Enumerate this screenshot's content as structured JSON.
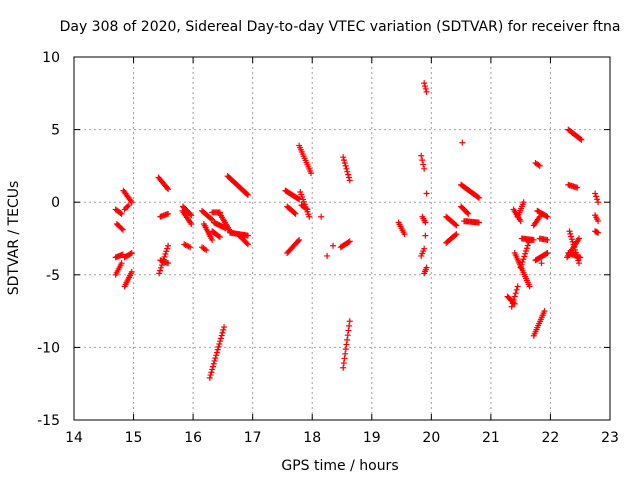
{
  "chart_data": {
    "type": "scatter",
    "title": "Day 308 of 2020, Sidereal Day-to-day VTEC variation (SDTVAR) for receiver ftna",
    "xlabel": "GPS time / hours",
    "ylabel": "SDTVAR / TECUs",
    "xlim": [
      14,
      23
    ],
    "ylim": [
      -15,
      10
    ],
    "xticks": [
      "14",
      "15",
      "16",
      "17",
      "18",
      "19",
      "20",
      "21",
      "22",
      "23"
    ],
    "yticks": [
      "10",
      "5",
      "0",
      "-5",
      "-10",
      "-15"
    ],
    "grid": true,
    "marker": "plus",
    "color": "#ff0000",
    "series": [
      {
        "name": "SDTVAR",
        "segments": [
          {
            "x0": 14.7,
            "y0": -0.5,
            "x1": 14.8,
            "y1": -0.8
          },
          {
            "x0": 14.72,
            "y0": -1.5,
            "x1": 14.82,
            "y1": -1.9
          },
          {
            "x0": 14.7,
            "y0": -3.8,
            "x1": 14.82,
            "y1": -3.6
          },
          {
            "x0": 14.7,
            "y0": -5.0,
            "x1": 14.8,
            "y1": -4.2
          },
          {
            "x0": 14.85,
            "y0": -5.8,
            "x1": 14.97,
            "y1": -4.8
          },
          {
            "x0": 14.85,
            "y0": -3.8,
            "x1": 14.97,
            "y1": -3.5
          },
          {
            "x0": 14.83,
            "y0": 0.8,
            "x1": 14.97,
            "y1": 0.0
          },
          {
            "x0": 14.85,
            "y0": -0.5,
            "x1": 14.92,
            "y1": -0.2
          },
          {
            "x0": 15.42,
            "y0": 1.7,
            "x1": 15.58,
            "y1": 0.9
          },
          {
            "x0": 15.45,
            "y0": -1.0,
            "x1": 15.58,
            "y1": -0.8
          },
          {
            "x0": 15.43,
            "y0": -4.9,
            "x1": 15.58,
            "y1": -3.0
          },
          {
            "x0": 15.45,
            "y0": -4.0,
            "x1": 15.58,
            "y1": -4.2
          },
          {
            "x0": 15.82,
            "y0": -0.6,
            "x1": 15.97,
            "y1": -1.5
          },
          {
            "x0": 15.83,
            "y0": -0.3,
            "x1": 15.97,
            "y1": -0.9
          },
          {
            "x0": 15.85,
            "y0": -2.9,
            "x1": 15.95,
            "y1": -3.1
          },
          {
            "x0": 16.15,
            "y0": -0.6,
            "x1": 16.32,
            "y1": -1.2
          },
          {
            "x0": 16.18,
            "y0": -1.5,
            "x1": 16.32,
            "y1": -2.6
          },
          {
            "x0": 16.15,
            "y0": -3.1,
            "x1": 16.22,
            "y1": -3.3
          },
          {
            "x0": 16.32,
            "y0": -0.7,
            "x1": 16.45,
            "y1": -0.7
          },
          {
            "x0": 16.35,
            "y0": -1.4,
            "x1": 16.55,
            "y1": -1.8
          },
          {
            "x0": 16.32,
            "y0": -2.0,
            "x1": 16.45,
            "y1": -2.4
          },
          {
            "x0": 16.28,
            "y0": -12.1,
            "x1": 16.52,
            "y1": -8.6
          },
          {
            "x0": 16.45,
            "y0": -0.8,
            "x1": 16.62,
            "y1": -2.0
          },
          {
            "x0": 16.58,
            "y0": 1.8,
            "x1": 16.92,
            "y1": 0.5
          },
          {
            "x0": 16.62,
            "y0": -2.1,
            "x1": 16.92,
            "y1": -2.3
          },
          {
            "x0": 16.75,
            "y0": -2.2,
            "x1": 16.92,
            "y1": -2.9
          },
          {
            "x0": 17.55,
            "y0": 0.8,
            "x1": 17.78,
            "y1": 0.2
          },
          {
            "x0": 17.58,
            "y0": -0.3,
            "x1": 17.72,
            "y1": -0.8
          },
          {
            "x0": 17.58,
            "y0": -3.5,
            "x1": 17.78,
            "y1": -2.6
          },
          {
            "x0": 17.78,
            "y0": 3.9,
            "x1": 17.98,
            "y1": 2.0
          },
          {
            "x0": 17.8,
            "y0": 0.7,
            "x1": 17.95,
            "y1": -1.0
          },
          {
            "x0": 17.82,
            "y0": -0.2,
            "x1": 17.92,
            "y1": -0.5
          },
          {
            "x0": 18.48,
            "y0": -3.1,
            "x1": 18.63,
            "y1": -2.7
          },
          {
            "x0": 18.52,
            "y0": 3.1,
            "x1": 18.63,
            "y1": 1.5
          },
          {
            "x0": 18.52,
            "y0": -11.4,
            "x1": 18.63,
            "y1": -8.2
          },
          {
            "x0": 19.45,
            "y0": -1.4,
            "x1": 19.55,
            "y1": -2.2
          },
          {
            "x0": 19.83,
            "y0": 3.2,
            "x1": 19.88,
            "y1": 2.3
          },
          {
            "x0": 19.85,
            "y0": -1.0,
            "x1": 19.9,
            "y1": -1.4
          },
          {
            "x0": 19.83,
            "y0": -3.7,
            "x1": 19.88,
            "y1": -3.2
          },
          {
            "x0": 19.88,
            "y0": 8.2,
            "x1": 19.92,
            "y1": 7.6
          },
          {
            "x0": 19.88,
            "y0": -4.9,
            "x1": 19.92,
            "y1": -4.5
          },
          {
            "x0": 20.25,
            "y0": -1.0,
            "x1": 20.42,
            "y1": -1.6
          },
          {
            "x0": 20.25,
            "y0": -2.8,
            "x1": 20.42,
            "y1": -2.2
          },
          {
            "x0": 20.5,
            "y0": 1.2,
            "x1": 20.8,
            "y1": 0.3
          },
          {
            "x0": 20.5,
            "y0": -0.3,
            "x1": 20.62,
            "y1": -0.8
          },
          {
            "x0": 20.55,
            "y0": -1.3,
            "x1": 20.8,
            "y1": -1.4
          },
          {
            "x0": 21.35,
            "y0": -7.2,
            "x1": 21.45,
            "y1": -5.8
          },
          {
            "x0": 21.28,
            "y0": -6.5,
            "x1": 21.4,
            "y1": -7.0
          },
          {
            "x0": 21.4,
            "y0": -3.5,
            "x1": 21.65,
            "y1": -5.8
          },
          {
            "x0": 21.38,
            "y0": -0.5,
            "x1": 21.5,
            "y1": -1.3
          },
          {
            "x0": 21.45,
            "y0": -1.0,
            "x1": 21.55,
            "y1": 0.0
          },
          {
            "x0": 21.52,
            "y0": -2.5,
            "x1": 21.72,
            "y1": -2.6
          },
          {
            "x0": 21.5,
            "y0": -4.5,
            "x1": 21.65,
            "y1": -2.6
          },
          {
            "x0": 21.72,
            "y0": -9.2,
            "x1": 21.9,
            "y1": -7.5
          },
          {
            "x0": 21.78,
            "y0": -0.6,
            "x1": 21.95,
            "y1": -1.0
          },
          {
            "x0": 21.75,
            "y0": -4.0,
            "x1": 21.95,
            "y1": -3.5
          },
          {
            "x0": 21.72,
            "y0": -1.6,
            "x1": 21.82,
            "y1": -1.0
          },
          {
            "x0": 21.82,
            "y0": -2.5,
            "x1": 21.95,
            "y1": -2.6
          },
          {
            "x0": 21.75,
            "y0": 2.7,
            "x1": 21.82,
            "y1": 2.5
          },
          {
            "x0": 22.3,
            "y0": 5.0,
            "x1": 22.52,
            "y1": 4.3
          },
          {
            "x0": 22.3,
            "y0": 1.2,
            "x1": 22.45,
            "y1": 1.0
          },
          {
            "x0": 22.28,
            "y0": -3.8,
            "x1": 22.48,
            "y1": -2.5
          },
          {
            "x0": 22.32,
            "y0": -2.0,
            "x1": 22.48,
            "y1": -4.2
          },
          {
            "x0": 22.3,
            "y0": -3.5,
            "x1": 22.5,
            "y1": -3.8
          },
          {
            "x0": 22.75,
            "y0": 0.6,
            "x1": 22.8,
            "y1": 0.0
          },
          {
            "x0": 22.75,
            "y0": -0.9,
            "x1": 22.8,
            "y1": -1.3
          },
          {
            "x0": 22.75,
            "y0": -2.0,
            "x1": 22.8,
            "y1": -2.1
          }
        ],
        "points": [
          {
            "x": 18.15,
            "y": -1.0
          },
          {
            "x": 18.25,
            "y": -3.7
          },
          {
            "x": 18.35,
            "y": -3.0
          },
          {
            "x": 19.92,
            "y": 0.6
          },
          {
            "x": 19.9,
            "y": -2.3
          },
          {
            "x": 20.52,
            "y": 4.1
          },
          {
            "x": 21.85,
            "y": -4.2
          }
        ]
      }
    ]
  }
}
